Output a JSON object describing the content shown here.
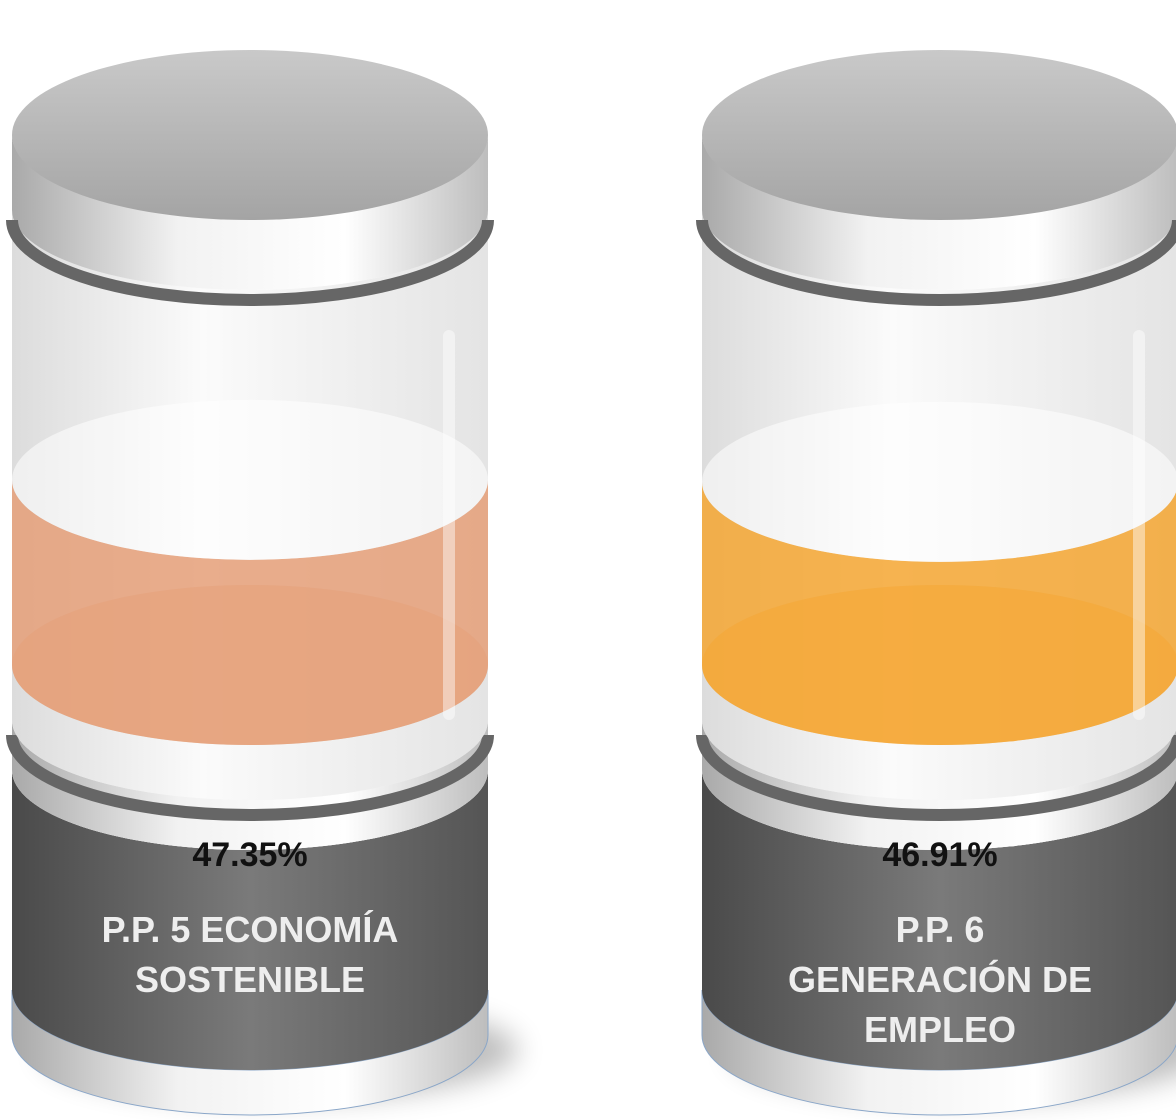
{
  "chart_data": {
    "type": "cylinder",
    "categories": [
      "P.P. 5 ECONOMÍA SOSTENIBLE",
      "P.P. 6 GENERACIÓN DE EMPLEO"
    ],
    "values": [
      47.35,
      46.91
    ],
    "value_labels": [
      "47.35%",
      "46.91%"
    ],
    "colors": [
      "#e59f78",
      "#f5a631"
    ],
    "ylim": [
      0,
      100
    ]
  }
}
